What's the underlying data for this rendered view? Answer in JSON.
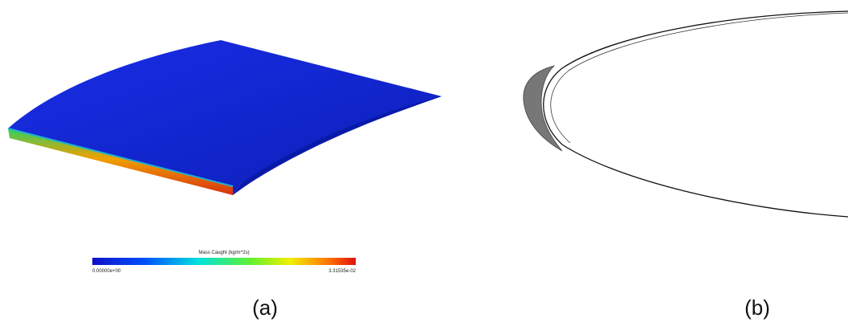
{
  "panels": [
    {
      "label": "(a)",
      "colorbar": {
        "title": "Mass Caught (kg/m^2s)",
        "min_label": "0.00000e+00",
        "max_label": "3.31535e-02"
      }
    },
    {
      "label": "(b)"
    }
  ]
}
